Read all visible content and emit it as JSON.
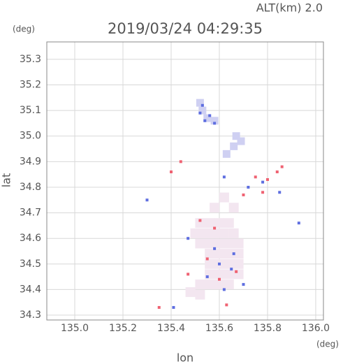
{
  "chart_data": {
    "type": "scatter",
    "title": "2019/03/24 04:29:35",
    "subtitle": "ALT(km) 2.0",
    "y_unit": "(deg)",
    "x_unit": "(deg)",
    "xlabel": "lon",
    "ylabel": "lat",
    "xlim": [
      134.884,
      136.032
    ],
    "ylim": [
      34.281,
      35.368
    ],
    "xticks": [
      {
        "value": 135,
        "label": "135.0"
      },
      135.2,
      135.4,
      135.6,
      135.8,
      {
        "value": 136,
        "label": "136.0"
      }
    ],
    "yticks": [
      34.3,
      34.4,
      34.5,
      34.6,
      34.7,
      34.8,
      34.9,
      {
        "value": 35,
        "label": "35.0"
      },
      35.1,
      35.2,
      35.3
    ],
    "grid": true,
    "series": [
      {
        "color": "#f3e6f0",
        "x": [
          135.52,
          135.56,
          135.6,
          135.64,
          135.5,
          135.54,
          135.58,
          135.62,
          135.66,
          135.52,
          135.56,
          135.6,
          135.64,
          135.68,
          135.56,
          135.6,
          135.64,
          135.68,
          135.56,
          135.6,
          135.64,
          135.68,
          135.56,
          135.6,
          135.64,
          135.68,
          135.52,
          135.56,
          135.6,
          135.64,
          135.48,
          135.52,
          135.62,
          135.66,
          135.58
        ],
        "y": [
          34.66,
          34.66,
          34.66,
          34.66,
          34.62,
          34.62,
          34.62,
          34.62,
          34.62,
          34.58,
          34.58,
          34.58,
          34.58,
          34.58,
          34.54,
          34.54,
          34.54,
          34.54,
          34.5,
          34.5,
          34.5,
          34.5,
          34.46,
          34.46,
          34.46,
          34.46,
          34.42,
          34.42,
          34.42,
          34.42,
          34.39,
          34.38,
          34.76,
          34.72,
          34.72
        ]
      },
      {
        "color": "#cfd0f2",
        "x": [
          135.52,
          135.53,
          135.55,
          135.58,
          135.67,
          135.66,
          135.63,
          135.69
        ],
        "y": [
          35.13,
          35.1,
          35.07,
          35.06,
          35.0,
          34.96,
          34.93,
          34.98
        ]
      },
      {
        "color": "#5e6ee0",
        "x": [
          135.53,
          135.52,
          135.54,
          135.56,
          135.58,
          135.6,
          135.65,
          135.55,
          135.62,
          135.7,
          135.58,
          135.66,
          135.72,
          135.78,
          135.85,
          135.47,
          135.41,
          135.3,
          135.93,
          135.62
        ],
        "y": [
          35.12,
          35.09,
          35.06,
          35.08,
          35.05,
          34.5,
          34.48,
          34.45,
          34.4,
          34.42,
          34.56,
          34.54,
          34.8,
          34.82,
          34.78,
          34.6,
          34.33,
          34.75,
          34.66,
          34.84
        ]
      },
      {
        "color": "#ef6272",
        "x": [
          135.75,
          135.8,
          135.84,
          135.78,
          135.7,
          135.58,
          135.52,
          135.6,
          135.67,
          135.55,
          135.44,
          135.4,
          135.35,
          135.63,
          135.86,
          135.47
        ],
        "y": [
          34.84,
          34.83,
          34.86,
          34.78,
          34.77,
          34.64,
          34.67,
          34.44,
          34.47,
          34.52,
          34.9,
          34.86,
          34.33,
          34.34,
          34.88,
          34.46
        ]
      }
    ]
  }
}
